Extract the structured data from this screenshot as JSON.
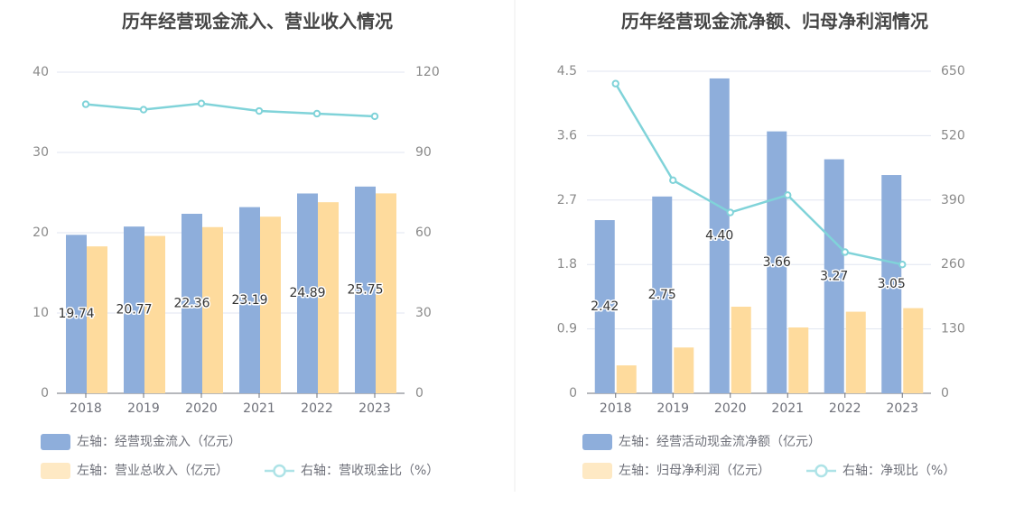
{
  "chart_data": [
    {
      "type": "bar",
      "title": "历年经营现金流入、营业收入情况",
      "categories": [
        "2018",
        "2019",
        "2020",
        "2021",
        "2022",
        "2023"
      ],
      "series": [
        {
          "name": "左轴：经营现金流入（亿元）",
          "type": "bar",
          "axis": "left",
          "color": "#8eaedb",
          "values": [
            19.74,
            20.77,
            22.36,
            23.19,
            24.89,
            25.75
          ],
          "labels": [
            "19.74",
            "20.77",
            "22.36",
            "23.19",
            "24.89",
            "25.75"
          ]
        },
        {
          "name": "左轴：营业总收入（亿元）",
          "type": "bar",
          "axis": "left",
          "color": "#fedb9d",
          "values": [
            18.3,
            19.6,
            20.7,
            22.0,
            23.8,
            24.9
          ]
        },
        {
          "name": "右轴：营收现金比（%）",
          "type": "line",
          "axis": "right",
          "color": "#80d3d9",
          "values": [
            108.0,
            106.0,
            108.3,
            105.5,
            104.5,
            103.5
          ]
        }
      ],
      "y_left": {
        "min": 0,
        "max": 40,
        "ticks": [
          "0",
          "10",
          "20",
          "30",
          "40"
        ]
      },
      "y_right": {
        "min": 0,
        "max": 120,
        "ticks": [
          "0",
          "30",
          "60",
          "90",
          "120"
        ]
      },
      "grid": true,
      "legend_position": "bottom"
    },
    {
      "type": "bar",
      "title": "历年经营现金流净额、归母净利润情况",
      "categories": [
        "2018",
        "2019",
        "2020",
        "2021",
        "2022",
        "2023"
      ],
      "series": [
        {
          "name": "左轴：经营活动现金流净额（亿元）",
          "type": "bar",
          "axis": "left",
          "color": "#8eaedb",
          "values": [
            2.42,
            2.75,
            4.4,
            3.66,
            3.27,
            3.05
          ],
          "labels": [
            "2.42",
            "2.75",
            "4.40",
            "3.66",
            "3.27",
            "3.05"
          ]
        },
        {
          "name": "左轴：归母净利润（亿元）",
          "type": "bar",
          "axis": "left",
          "color": "#fedb9d",
          "values": [
            0.39,
            0.64,
            1.21,
            0.92,
            1.14,
            1.19
          ]
        },
        {
          "name": "右轴：净现比（%）",
          "type": "line",
          "axis": "right",
          "color": "#80d3d9",
          "values": [
            625,
            430,
            365,
            400,
            285,
            260
          ]
        }
      ],
      "y_left": {
        "min": 0,
        "max": 4.5,
        "ticks": [
          "0",
          "0.9",
          "1.8",
          "2.7",
          "3.6",
          "4.5"
        ]
      },
      "y_right": {
        "min": 0,
        "max": 650,
        "ticks": [
          "0",
          "130",
          "260",
          "390",
          "520",
          "650"
        ]
      },
      "grid": true,
      "legend_position": "bottom"
    }
  ]
}
